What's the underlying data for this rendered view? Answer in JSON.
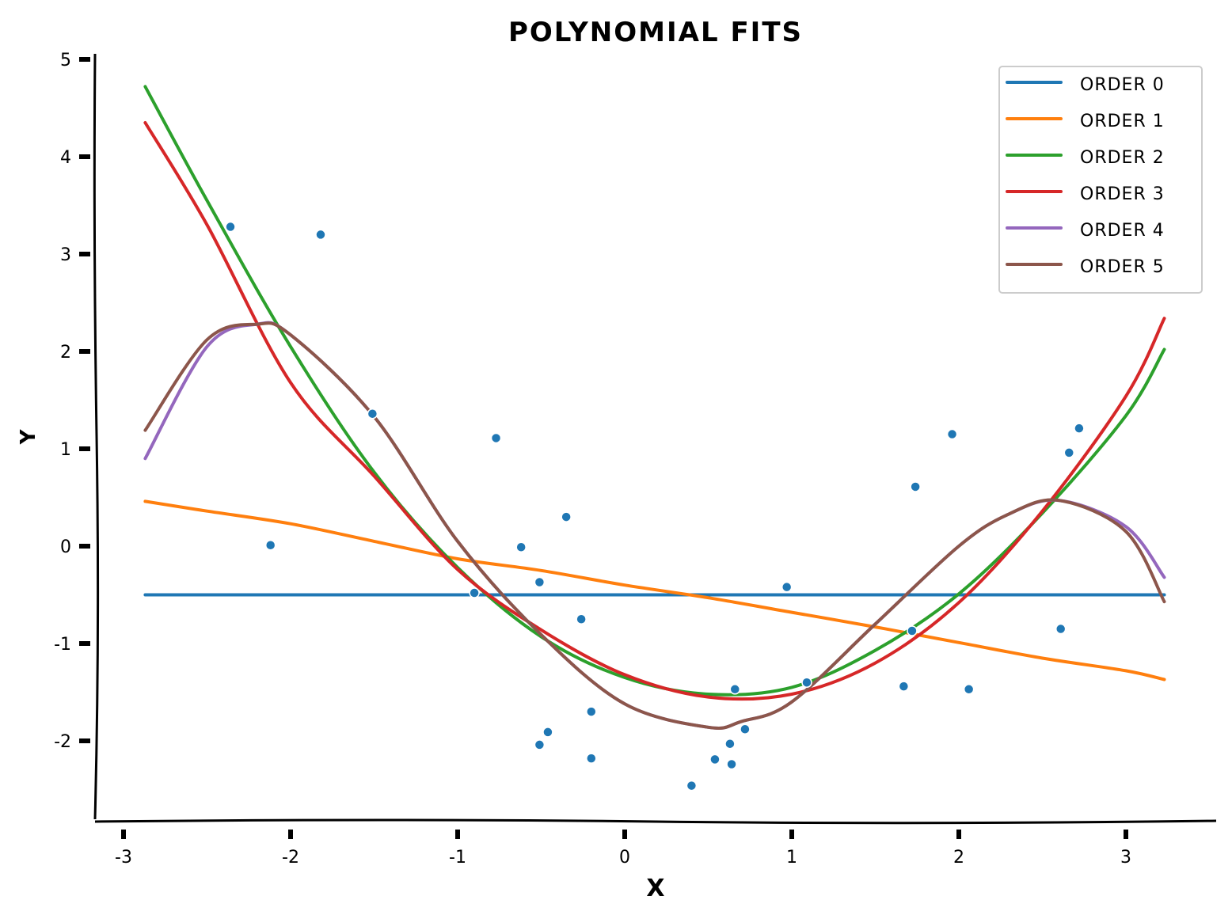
{
  "chart_data": {
    "type": "line",
    "title": "POLYNOMIAL FITS",
    "xlabel": "X",
    "ylabel": "Y",
    "xlim": [
      -3.15,
      3.55
    ],
    "ylim": [
      -2.8,
      5.1
    ],
    "xticks": [
      {
        "value": -3,
        "label": "-3"
      },
      {
        "value": -2,
        "label": "-2"
      },
      {
        "value": -1,
        "label": "-1"
      },
      {
        "value": 0,
        "label": "0"
      },
      {
        "value": 1,
        "label": "1"
      },
      {
        "value": 2,
        "label": "2"
      },
      {
        "value": 3,
        "label": "3"
      }
    ],
    "yticks": [
      {
        "value": -2,
        "label": "-2"
      },
      {
        "value": -1,
        "label": "-1"
      },
      {
        "value": 0,
        "label": "0"
      },
      {
        "value": 1,
        "label": "1"
      },
      {
        "value": 2,
        "label": "2"
      },
      {
        "value": 3,
        "label": "3"
      },
      {
        "value": 4,
        "label": "4"
      },
      {
        "value": 5,
        "label": "5"
      }
    ],
    "grid": false,
    "legend": {
      "position": "top-right"
    },
    "points": {
      "color": "#1f77b4",
      "x": [
        -2.36,
        -2.12,
        -1.82,
        -1.51,
        -0.9,
        -0.77,
        -0.62,
        -0.51,
        -0.51,
        -0.46,
        -0.35,
        -0.26,
        -0.2,
        -0.2,
        0.4,
        0.54,
        0.63,
        0.64,
        0.66,
        0.72,
        0.97,
        1.09,
        1.67,
        1.72,
        1.74,
        1.96,
        2.06,
        2.61,
        2.66,
        2.72
      ],
      "y": [
        3.28,
        0.01,
        3.2,
        1.36,
        -0.48,
        1.11,
        -0.01,
        -0.37,
        -2.04,
        -1.91,
        0.3,
        -0.75,
        -1.7,
        -2.18,
        -2.46,
        -2.19,
        -2.03,
        -2.24,
        -1.47,
        -1.88,
        -0.42,
        -1.4,
        -1.44,
        -0.87,
        0.61,
        1.15,
        -1.47,
        -0.85,
        0.96,
        1.21
      ]
    },
    "series": [
      {
        "name": "ORDER 0",
        "color": "#1f77b4",
        "x": [
          -2.87,
          -2.5,
          -2.0,
          -1.5,
          -1.0,
          -0.5,
          0.0,
          0.5,
          1.0,
          1.5,
          2.0,
          2.5,
          3.0,
          3.23
        ],
        "y": [
          -0.5,
          -0.5,
          -0.5,
          -0.5,
          -0.5,
          -0.5,
          -0.5,
          -0.5,
          -0.5,
          -0.5,
          -0.5,
          -0.5,
          -0.5,
          -0.5
        ]
      },
      {
        "name": "ORDER 1",
        "color": "#ff7f0e",
        "x": [
          -2.87,
          -2.5,
          -2.0,
          -1.5,
          -1.0,
          -0.5,
          0.0,
          0.5,
          1.0,
          1.5,
          2.0,
          2.5,
          3.0,
          3.23
        ],
        "y": [
          0.46,
          0.36,
          0.23,
          0.05,
          -0.13,
          -0.25,
          -0.4,
          -0.53,
          -0.68,
          -0.83,
          -0.99,
          -1.15,
          -1.28,
          -1.37
        ]
      },
      {
        "name": "ORDER 2",
        "color": "#2ca02c",
        "x": [
          -2.87,
          -2.5,
          -2.0,
          -1.5,
          -1.0,
          -0.5,
          0.0,
          0.5,
          1.0,
          1.5,
          2.0,
          2.5,
          3.0,
          3.23
        ],
        "y": [
          4.72,
          3.55,
          2.05,
          0.76,
          -0.22,
          -0.93,
          -1.35,
          -1.52,
          -1.45,
          -1.07,
          -0.49,
          0.34,
          1.34,
          2.02
        ]
      },
      {
        "name": "ORDER 3",
        "color": "#d62728",
        "x": [
          -2.87,
          -2.5,
          -2.0,
          -1.5,
          -1.0,
          -0.5,
          0.0,
          0.5,
          1.0,
          1.5,
          2.0,
          2.5,
          3.0,
          3.23
        ],
        "y": [
          4.35,
          3.3,
          1.68,
          0.72,
          -0.24,
          -0.86,
          -1.32,
          -1.55,
          -1.52,
          -1.2,
          -0.58,
          0.36,
          1.54,
          2.34
        ]
      },
      {
        "name": "ORDER 4",
        "color": "#9467bd",
        "x": [
          -2.87,
          -2.5,
          -2.2,
          -2.0,
          -1.5,
          -1.0,
          -0.5,
          0.0,
          0.5,
          0.7,
          1.0,
          1.5,
          2.0,
          2.3,
          2.6,
          3.0,
          3.23
        ],
        "y": [
          0.9,
          2.05,
          2.28,
          2.17,
          1.33,
          0.05,
          -0.91,
          -1.62,
          -1.86,
          -1.8,
          -1.6,
          -0.8,
          0.0,
          0.33,
          0.47,
          0.2,
          -0.32
        ]
      },
      {
        "name": "ORDER 5",
        "color": "#8c564b",
        "x": [
          -2.87,
          -2.5,
          -2.2,
          -2.0,
          -1.5,
          -1.0,
          -0.5,
          0.0,
          0.5,
          0.7,
          1.0,
          1.5,
          2.0,
          2.3,
          2.6,
          3.0,
          3.23
        ],
        "y": [
          1.19,
          2.12,
          2.28,
          2.17,
          1.33,
          0.05,
          -0.91,
          -1.62,
          -1.86,
          -1.8,
          -1.6,
          -0.8,
          0.0,
          0.33,
          0.47,
          0.15,
          -0.57
        ]
      }
    ]
  }
}
